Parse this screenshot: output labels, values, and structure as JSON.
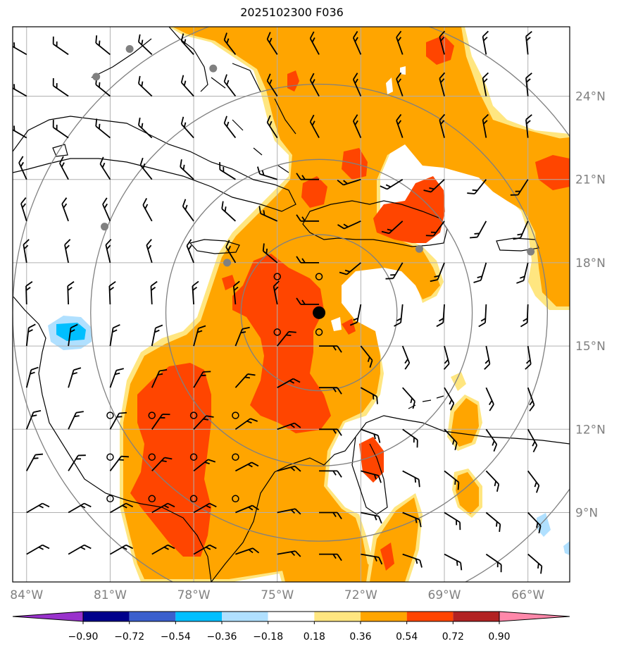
{
  "title": "2025102300 F036",
  "axes": {
    "lon_ticks": [
      "84°W",
      "81°W",
      "78°W",
      "75°W",
      "72°W",
      "69°W",
      "66°W"
    ],
    "lat_ticks": [
      "24°N",
      "21°N",
      "18°N",
      "15°N",
      "12°N",
      "9°N"
    ],
    "lon_range": [
      -84.5,
      -64.5
    ],
    "lat_range": [
      6.5,
      26.5
    ],
    "gridlines": true
  },
  "colorbar": {
    "tick_labels": [
      "−0.90",
      "−0.72",
      "−0.54",
      "−0.36",
      "−0.18",
      "0.18",
      "0.36",
      "0.54",
      "0.72",
      "0.90"
    ],
    "colors": [
      "#9932cc",
      "#00008b",
      "#3a5fcd",
      "#00bfff",
      "#b0e0ff",
      "#ffffff",
      "#ffe680",
      "#ffa500",
      "#ff4500",
      "#b22222",
      "#ff88aa"
    ],
    "extend": "both"
  },
  "storm_center": {
    "lon": -73.5,
    "lat": 16.2
  },
  "range_rings_deg": [
    2.8,
    5.5,
    8.2,
    11.0
  ],
  "station_markers": [
    {
      "lon": -80.3,
      "lat": 25.7
    },
    {
      "lon": -77.3,
      "lat": 25.0
    },
    {
      "lon": -81.5,
      "lat": 24.7
    },
    {
      "lon": -81.2,
      "lat": 19.3
    },
    {
      "lon": -76.8,
      "lat": 18.0
    },
    {
      "lon": -69.9,
      "lat": 18.5
    },
    {
      "lon": -65.9,
      "lat": 18.4
    }
  ],
  "open_circles": [
    {
      "lon": -75.0,
      "lat": 17.5
    },
    {
      "lon": -73.5,
      "lat": 17.5
    },
    {
      "lon": -75.0,
      "lat": 15.5
    },
    {
      "lon": -73.5,
      "lat": 15.5
    },
    {
      "lon": -81.0,
      "lat": 12.5
    },
    {
      "lon": -79.5,
      "lat": 12.5
    },
    {
      "lon": -78.0,
      "lat": 12.5
    },
    {
      "lon": -76.5,
      "lat": 12.5
    },
    {
      "lon": -81.0,
      "lat": 11.0
    },
    {
      "lon": -79.5,
      "lat": 11.0
    },
    {
      "lon": -78.0,
      "lat": 11.0
    },
    {
      "lon": -76.5,
      "lat": 11.0
    },
    {
      "lon": -81.0,
      "lat": 9.5
    },
    {
      "lon": -79.5,
      "lat": 9.5
    },
    {
      "lon": -78.0,
      "lat": 9.5
    },
    {
      "lon": -76.5,
      "lat": 9.5
    }
  ],
  "colors": {
    "frame": "#000000",
    "grid": "#b0b0b0",
    "ring": "#808080",
    "tick_text": "#808080",
    "land": "#000000"
  }
}
